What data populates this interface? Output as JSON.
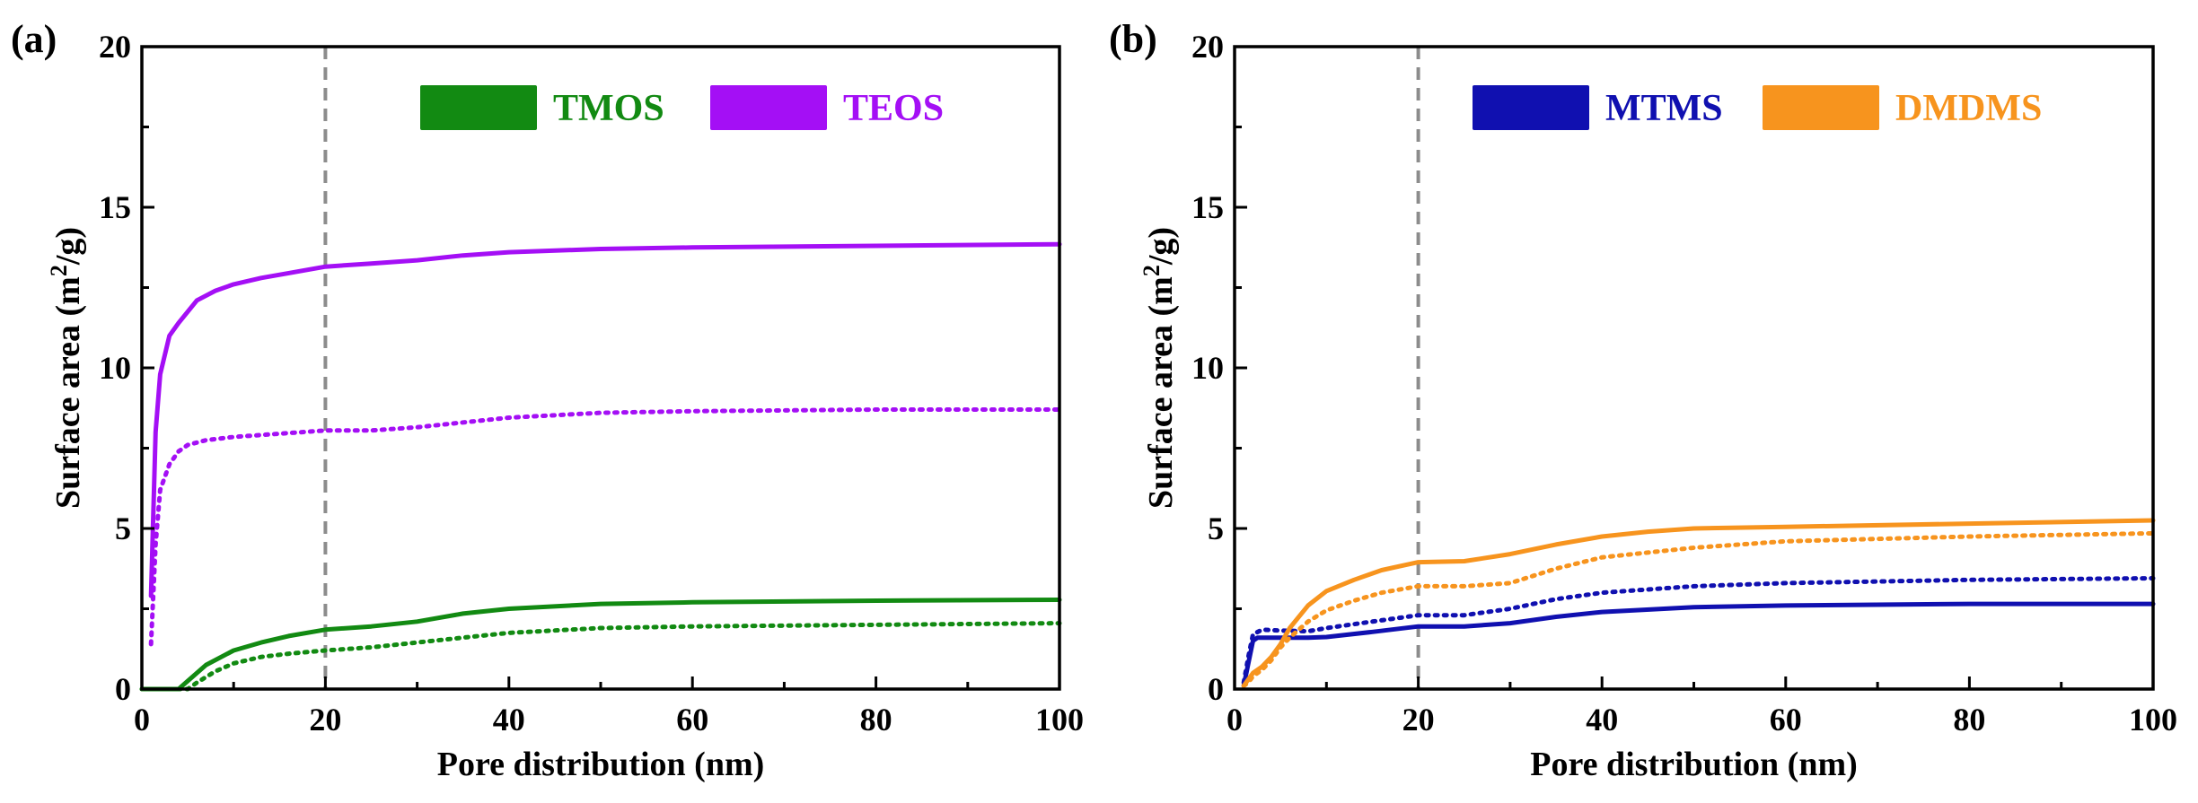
{
  "figure": {
    "background": "#ffffff"
  },
  "chart_data": [
    {
      "type": "line",
      "panel_label": "(a)",
      "xlabel": "Pore distribution (nm)",
      "ylabel": "Surface area (m²/g)",
      "ylabel_parts": {
        "before": "Surface area (m",
        "sup": "2",
        "after": "/g)"
      },
      "xlim": [
        0,
        100
      ],
      "ylim": [
        0,
        20
      ],
      "xticks": [
        "0",
        "20",
        "40",
        "60",
        "80",
        "100"
      ],
      "yticks": [
        "0",
        "5",
        "10",
        "15",
        "20"
      ],
      "reference_line": {
        "x": 20,
        "style": "dashed",
        "color": "#8c8c8c"
      },
      "legend": [
        {
          "name": "TMOS",
          "color": "#128a12"
        },
        {
          "name": "TEOS",
          "color": "#a40ff5"
        }
      ],
      "series": [
        {
          "name": "TMOS",
          "style": "solid",
          "color": "#128a12",
          "x": [
            0,
            4,
            5,
            7,
            10,
            13,
            16,
            20,
            25,
            30,
            35,
            40,
            50,
            60,
            80,
            100
          ],
          "y": [
            0,
            0,
            0.25,
            0.75,
            1.2,
            1.45,
            1.65,
            1.85,
            1.95,
            2.1,
            2.35,
            2.5,
            2.65,
            2.7,
            2.75,
            2.78
          ]
        },
        {
          "name": "TMOS",
          "style": "dotted",
          "color": "#128a12",
          "x": [
            0,
            5,
            6,
            8,
            10,
            13,
            16,
            20,
            25,
            30,
            35,
            40,
            50,
            60,
            80,
            100
          ],
          "y": [
            0,
            0,
            0.2,
            0.55,
            0.8,
            1.0,
            1.1,
            1.2,
            1.3,
            1.45,
            1.6,
            1.75,
            1.9,
            1.95,
            2.0,
            2.05
          ]
        },
        {
          "name": "TEOS",
          "style": "solid",
          "color": "#a40ff5",
          "x": [
            1,
            1.5,
            2,
            3,
            4,
            6,
            8,
            10,
            13,
            16,
            20,
            25,
            30,
            35,
            40,
            50,
            60,
            80,
            100
          ],
          "y": [
            2.9,
            8.0,
            9.8,
            11.0,
            11.4,
            12.1,
            12.4,
            12.6,
            12.8,
            12.95,
            13.15,
            13.25,
            13.35,
            13.5,
            13.6,
            13.7,
            13.75,
            13.8,
            13.85
          ]
        },
        {
          "name": "TEOS",
          "style": "dotted",
          "color": "#a40ff5",
          "x": [
            1,
            1.5,
            2,
            3,
            4,
            5,
            7,
            10,
            15,
            20,
            25,
            30,
            40,
            50,
            60,
            80,
            100
          ],
          "y": [
            1.4,
            4.5,
            6.2,
            7.0,
            7.4,
            7.6,
            7.75,
            7.85,
            7.95,
            8.05,
            8.05,
            8.15,
            8.45,
            8.6,
            8.65,
            8.7,
            8.7
          ]
        }
      ]
    },
    {
      "type": "line",
      "panel_label": "(b)",
      "xlabel": "Pore distribution (nm)",
      "ylabel": "Surface area (m²/g)",
      "ylabel_parts": {
        "before": "Surface area (m",
        "sup": "2",
        "after": "/g)"
      },
      "xlim": [
        0,
        100
      ],
      "ylim": [
        0,
        20
      ],
      "xticks": [
        "0",
        "20",
        "40",
        "60",
        "80",
        "100"
      ],
      "yticks": [
        "0",
        "5",
        "10",
        "15",
        "20"
      ],
      "reference_line": {
        "x": 20,
        "style": "dashed",
        "color": "#8c8c8c"
      },
      "legend": [
        {
          "name": "MTMS",
          "color": "#1010b0"
        },
        {
          "name": "DMDMS",
          "color": "#f7941e"
        }
      ],
      "series": [
        {
          "name": "MTMS",
          "style": "solid",
          "color": "#1010b0",
          "x": [
            1,
            1.5,
            2,
            2.5,
            3,
            5,
            8,
            10,
            15,
            20,
            25,
            30,
            35,
            40,
            50,
            60,
            80,
            100
          ],
          "y": [
            0.1,
            0.8,
            1.5,
            1.6,
            1.6,
            1.6,
            1.6,
            1.62,
            1.78,
            1.95,
            1.95,
            2.05,
            2.25,
            2.4,
            2.55,
            2.6,
            2.65,
            2.65
          ]
        },
        {
          "name": "MTMS",
          "style": "dotted",
          "color": "#1010b0",
          "x": [
            1,
            1.5,
            2,
            3,
            5,
            8,
            10,
            15,
            20,
            25,
            30,
            35,
            40,
            50,
            60,
            80,
            100
          ],
          "y": [
            0.2,
            1.0,
            1.7,
            1.85,
            1.82,
            1.8,
            1.9,
            2.1,
            2.3,
            2.3,
            2.5,
            2.8,
            3.0,
            3.2,
            3.3,
            3.4,
            3.45
          ]
        },
        {
          "name": "DMDMS",
          "style": "solid",
          "color": "#f7941e",
          "x": [
            1,
            1.5,
            2,
            3,
            4,
            5,
            6,
            8,
            10,
            13,
            16,
            20,
            25,
            30,
            35,
            40,
            45,
            50,
            60,
            80,
            100
          ],
          "y": [
            0.1,
            0.3,
            0.5,
            0.7,
            1.0,
            1.4,
            1.9,
            2.6,
            3.05,
            3.4,
            3.7,
            3.95,
            3.98,
            4.2,
            4.5,
            4.75,
            4.9,
            5.0,
            5.05,
            5.15,
            5.25
          ]
        },
        {
          "name": "DMDMS",
          "style": "dotted",
          "color": "#f7941e",
          "x": [
            1,
            1.5,
            2,
            3,
            4,
            5,
            6,
            8,
            10,
            13,
            16,
            20,
            25,
            30,
            35,
            40,
            50,
            60,
            80,
            100
          ],
          "y": [
            0.1,
            0.2,
            0.4,
            0.6,
            0.9,
            1.3,
            1.6,
            2.1,
            2.45,
            2.75,
            3.0,
            3.2,
            3.2,
            3.3,
            3.75,
            4.1,
            4.4,
            4.6,
            4.75,
            4.85
          ]
        }
      ]
    }
  ]
}
